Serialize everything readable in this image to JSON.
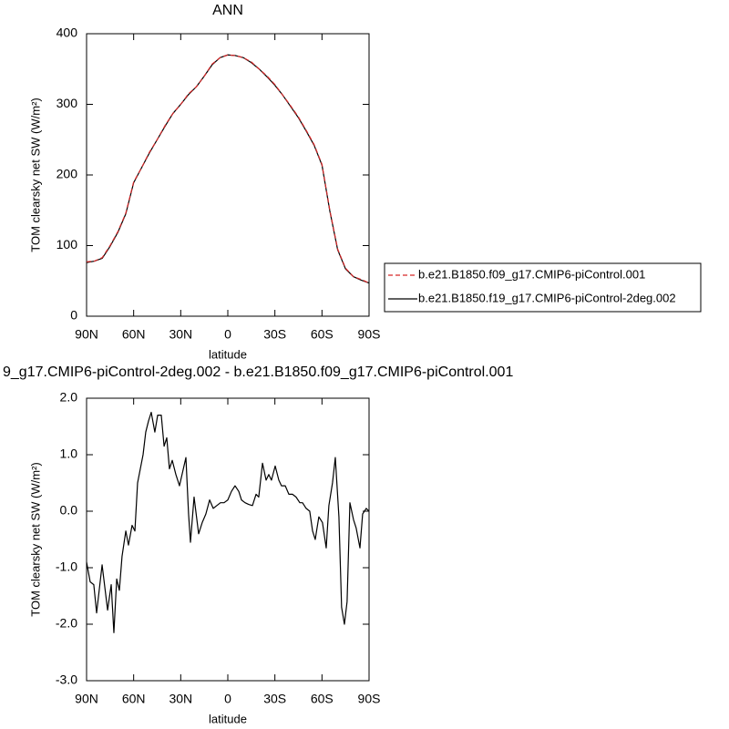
{
  "chart_data": [
    {
      "type": "line",
      "title": "ANN",
      "xlabel": "latitude",
      "ylabel": "TOM clearsky net SW (W/m²)",
      "xlim": [
        90,
        -90
      ],
      "xticks": [
        {
          "value": 90,
          "label": "90N"
        },
        {
          "value": 60,
          "label": "60N"
        },
        {
          "value": 30,
          "label": "30N"
        },
        0,
        {
          "value": -30,
          "label": "30S"
        },
        {
          "value": -60,
          "label": "60S"
        },
        {
          "value": -90,
          "label": "90S"
        }
      ],
      "ylim": [
        0,
        400
      ],
      "yticks": [
        0,
        100,
        200,
        300,
        400
      ],
      "x": [
        90,
        85,
        80,
        75,
        70,
        65,
        60,
        55,
        50,
        45,
        40,
        35,
        30,
        25,
        20,
        15,
        10,
        5,
        0,
        -5,
        -10,
        -15,
        -20,
        -25,
        -30,
        -35,
        -40,
        -45,
        -50,
        -55,
        -60,
        -65,
        -70,
        -75,
        -80,
        -85,
        -90
      ],
      "series": [
        {
          "name": "b.e21.B1850.f09_g17.CMIP6-piControl.001",
          "color": "#d62728",
          "line_style": "dashed",
          "values": [
            77,
            78,
            83,
            100,
            120,
            146,
            190,
            210,
            232,
            250,
            270,
            287,
            300,
            315,
            325,
            340,
            357,
            366,
            370,
            369,
            366,
            360,
            350,
            340,
            328,
            313,
            298,
            282,
            263,
            243,
            215,
            150,
            95,
            68,
            56,
            52,
            47
          ]
        },
        {
          "name": "b.e21.B1850.f19_g17.CMIP6-piControl-2deg.002",
          "color": "#000000",
          "line_style": "solid",
          "values": [
            76,
            78,
            82,
            99,
            119,
            145,
            189,
            210,
            231,
            250,
            269,
            287,
            300,
            314,
            325,
            340,
            356,
            366,
            370,
            369,
            366,
            359,
            350,
            339,
            327,
            313,
            297,
            281,
            262,
            242,
            214,
            149,
            94,
            67,
            56,
            51,
            47
          ]
        }
      ],
      "legend": "right"
    },
    {
      "type": "line",
      "title": "9_g17.CMIP6-piControl-2deg.002 - b.e21.B1850.f09_g17.CMIP6-piControl.001",
      "xlabel": "latitude",
      "ylabel": "TOM clearsky net SW (W/m²)",
      "xlim": [
        90,
        -90
      ],
      "xticks": [
        {
          "value": 90,
          "label": "90N"
        },
        {
          "value": 60,
          "label": "60N"
        },
        {
          "value": 30,
          "label": "30N"
        },
        0,
        {
          "value": -30,
          "label": "30S"
        },
        {
          "value": -60,
          "label": "60S"
        },
        {
          "value": -90,
          "label": "90S"
        }
      ],
      "ylim": [
        -3,
        2
      ],
      "yticks": [
        {
          "value": -3,
          "label": "-3.0"
        },
        {
          "value": -2,
          "label": "-2.0"
        },
        {
          "value": -1,
          "label": "-1.0"
        },
        {
          "value": 0,
          "label": "0.0"
        },
        {
          "value": 1,
          "label": "1.0"
        },
        {
          "value": 2,
          "label": "2.0"
        }
      ],
      "x": [
        90,
        87.7,
        85.4,
        83.6,
        80.1,
        76.6,
        74.3,
        72.6,
        70.8,
        69.1,
        67.4,
        65.0,
        63.3,
        61.0,
        59.2,
        57.5,
        54.0,
        52.3,
        50.5,
        48.8,
        46.5,
        44.7,
        42.4,
        40.6,
        38.9,
        37.2,
        35.4,
        33.1,
        30.8,
        26.7,
        25.0,
        23.8,
        21.5,
        18.6,
        16.3,
        14.0,
        11.6,
        9.3,
        7.0,
        4.7,
        2.4,
        0,
        -2.3,
        -4.6,
        -7.0,
        -8.7,
        -11.0,
        -13.3,
        -15.7,
        -18.0,
        -19.7,
        -22.1,
        -24.4,
        -26.1,
        -27.8,
        -30.2,
        -32.5,
        -34.2,
        -36.6,
        -38.9,
        -41.2,
        -43.5,
        -45.9,
        -47.6,
        -49.9,
        -52.2,
        -54.0,
        -55.7,
        -58.0,
        -60.3,
        -62.7,
        -64.4,
        -66.7,
        -68.5,
        -70.8,
        -72.5,
        -74.3,
        -76.0,
        -77.8,
        -80.1,
        -81.8,
        -84.2,
        -85.9,
        -88.2,
        -90
      ],
      "series": [
        {
          "color": "#000000",
          "line_style": "solid",
          "values": [
            -0.9,
            -1.25,
            -1.3,
            -1.8,
            -0.95,
            -1.75,
            -1.3,
            -2.15,
            -1.2,
            -1.4,
            -0.8,
            -0.35,
            -0.6,
            -0.25,
            -0.35,
            0.5,
            1.0,
            1.4,
            1.6,
            1.75,
            1.4,
            1.7,
            1.7,
            1.15,
            1.3,
            0.75,
            0.9,
            0.65,
            0.45,
            0.95,
            -0.05,
            -0.55,
            0.25,
            -0.4,
            -0.2,
            -0.05,
            0.2,
            0.05,
            0.1,
            0.15,
            0.15,
            0.2,
            0.35,
            0.45,
            0.35,
            0.2,
            0.15,
            0.12,
            0.1,
            0.3,
            0.25,
            0.85,
            0.55,
            0.65,
            0.55,
            0.8,
            0.55,
            0.45,
            0.45,
            0.3,
            0.3,
            0.25,
            0.15,
            0.15,
            0.05,
            0.0,
            -0.35,
            -0.5,
            -0.1,
            -0.2,
            -0.65,
            0.1,
            0.5,
            0.95,
            -0.1,
            -1.7,
            -2.0,
            -1.6,
            0.15,
            -0.15,
            -0.3,
            -0.65,
            -0.05,
            0.05,
            0.0
          ]
        }
      ]
    }
  ]
}
